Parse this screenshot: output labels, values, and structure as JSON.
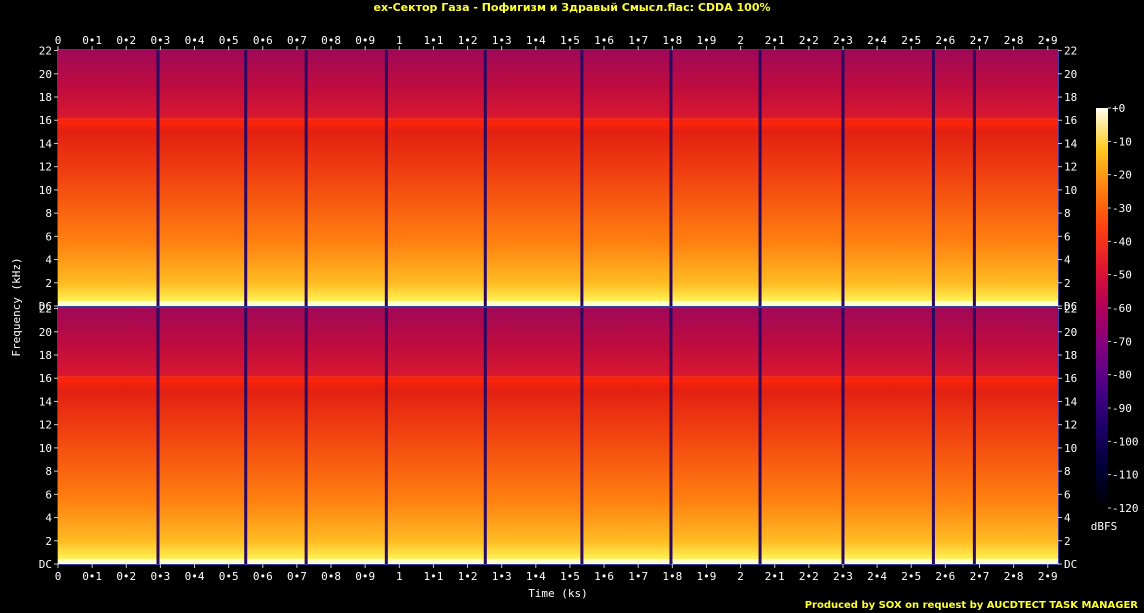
{
  "title": "ex-Сектор Газа - Пофигизм и Здравый Смысл.flac: CDDA 100%",
  "footer": "Produced by SOX on request by AUCDTECT TASK MANAGER",
  "chart_data": {
    "type": "heatmap",
    "xlabel": "Time (ks)",
    "ylabel": "Frequency (kHz)",
    "xlim": [
      0,
      2.93
    ],
    "ylim": [
      0,
      22.05
    ],
    "x_ticks": [
      {
        "v": 0,
        "label": "0"
      },
      {
        "v": 0.1,
        "label": "0•1"
      },
      {
        "v": 0.2,
        "label": "0•2"
      },
      {
        "v": 0.3,
        "label": "0•3"
      },
      {
        "v": 0.4,
        "label": "0•4"
      },
      {
        "v": 0.5,
        "label": "0•5"
      },
      {
        "v": 0.6,
        "label": "0•6"
      },
      {
        "v": 0.7,
        "label": "0•7"
      },
      {
        "v": 0.8,
        "label": "0•8"
      },
      {
        "v": 0.9,
        "label": "0•9"
      },
      {
        "v": 1.0,
        "label": "1"
      },
      {
        "v": 1.1,
        "label": "1•1"
      },
      {
        "v": 1.2,
        "label": "1•2"
      },
      {
        "v": 1.3,
        "label": "1•3"
      },
      {
        "v": 1.4,
        "label": "1•4"
      },
      {
        "v": 1.5,
        "label": "1•5"
      },
      {
        "v": 1.6,
        "label": "1•6"
      },
      {
        "v": 1.7,
        "label": "1•7"
      },
      {
        "v": 1.8,
        "label": "1•8"
      },
      {
        "v": 1.9,
        "label": "1•9"
      },
      {
        "v": 2.0,
        "label": "2"
      },
      {
        "v": 2.1,
        "label": "2•1"
      },
      {
        "v": 2.2,
        "label": "2•2"
      },
      {
        "v": 2.3,
        "label": "2•3"
      },
      {
        "v": 2.4,
        "label": "2•4"
      },
      {
        "v": 2.5,
        "label": "2•5"
      },
      {
        "v": 2.6,
        "label": "2•6"
      },
      {
        "v": 2.7,
        "label": "2•7"
      },
      {
        "v": 2.8,
        "label": "2•8"
      },
      {
        "v": 2.9,
        "label": "2•9"
      }
    ],
    "y_ticks": [
      {
        "v": 0,
        "label": "DC"
      },
      {
        "v": 2,
        "label": "2"
      },
      {
        "v": 4,
        "label": "4"
      },
      {
        "v": 6,
        "label": "6"
      },
      {
        "v": 8,
        "label": "8"
      },
      {
        "v": 10,
        "label": "10"
      },
      {
        "v": 12,
        "label": "12"
      },
      {
        "v": 14,
        "label": "14"
      },
      {
        "v": 16,
        "label": "16"
      },
      {
        "v": 18,
        "label": "18"
      },
      {
        "v": 20,
        "label": "20"
      },
      {
        "v": 22,
        "label": "22"
      }
    ],
    "channels": 2,
    "track_boundaries_ks": [
      0.293,
      0.55,
      0.727,
      0.962,
      1.252,
      1.535,
      1.796,
      2.057,
      2.3,
      2.565,
      2.685
    ],
    "lowpass_cutoff_khz": 16.2,
    "colorbar": {
      "label": "dBFS",
      "range": [
        -120,
        0
      ],
      "ticks": [
        {
          "v": 0,
          "label": "+0"
        },
        {
          "v": -10,
          "label": "-10"
        },
        {
          "v": -20,
          "label": "-20"
        },
        {
          "v": -30,
          "label": "-30"
        },
        {
          "v": -40,
          "label": "-40"
        },
        {
          "v": -50,
          "label": "-50"
        },
        {
          "v": -60,
          "label": "-60"
        },
        {
          "v": -70,
          "label": "-70"
        },
        {
          "v": -80,
          "label": "-80"
        },
        {
          "v": -90,
          "label": "-90"
        },
        {
          "v": -100,
          "label": "-100"
        },
        {
          "v": -110,
          "label": "-110"
        },
        {
          "v": -120,
          "label": "-120"
        }
      ]
    }
  }
}
